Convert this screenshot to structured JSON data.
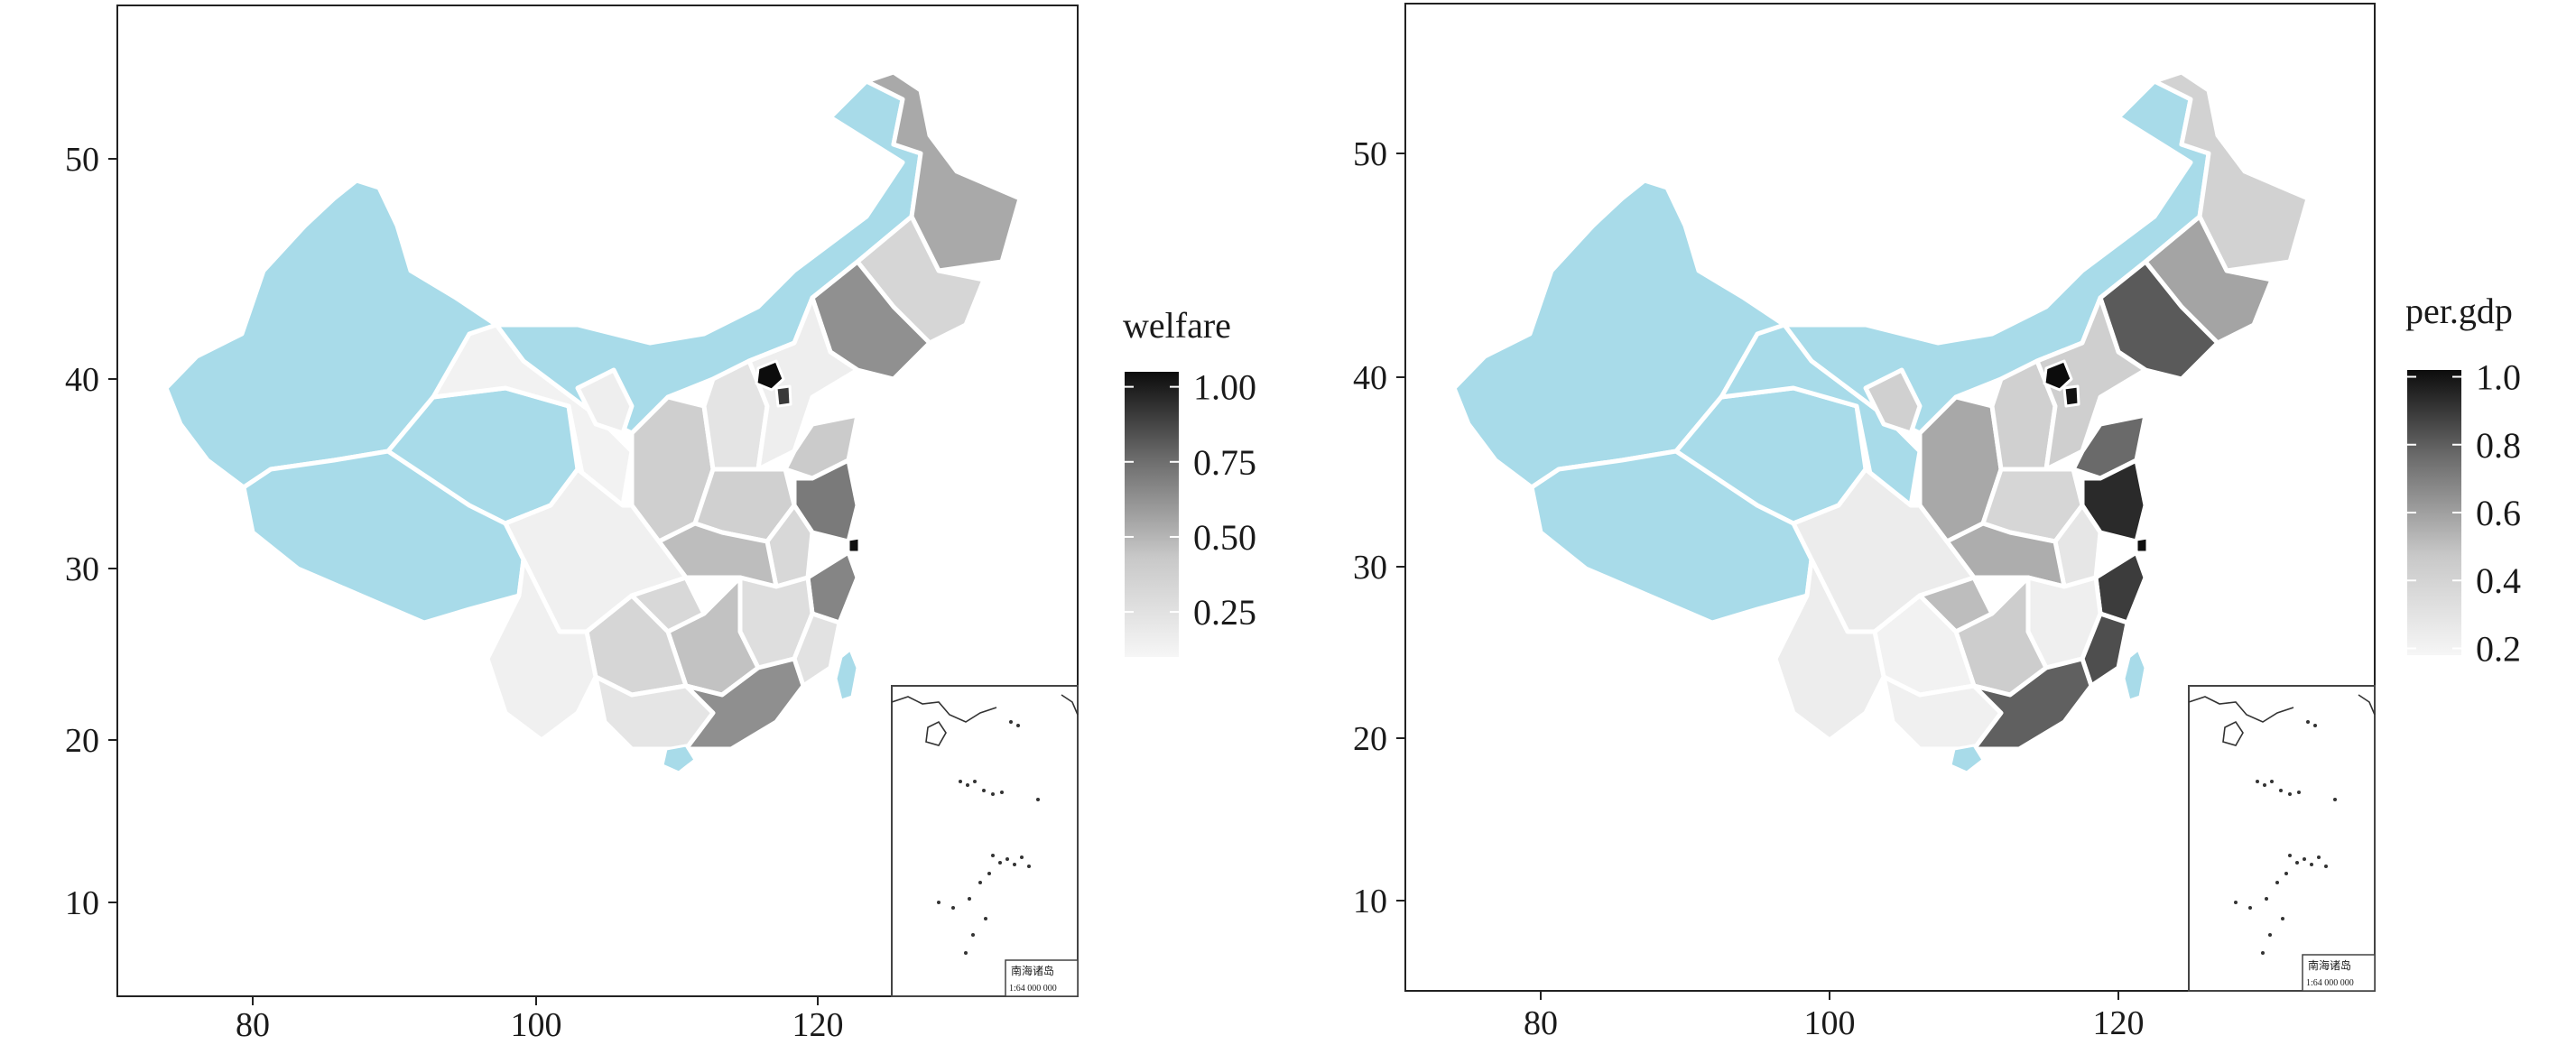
{
  "panels": [
    {
      "legend": {
        "title": "welfare",
        "ticks": [
          "1.00",
          "0.75",
          "0.50",
          "0.25"
        ],
        "range": [
          0.1,
          1.05
        ]
      },
      "axes": {
        "x_ticks": [
          "80",
          "100",
          "120"
        ],
        "y_ticks": [
          "50",
          "40",
          "30",
          "20",
          "10"
        ]
      },
      "inset": {
        "label": "南海诸岛",
        "scale": "1:64 000 000"
      }
    },
    {
      "legend": {
        "title": "per.gdp",
        "ticks": [
          "1.0",
          "0.8",
          "0.6",
          "0.4",
          "0.2"
        ],
        "range": [
          0.18,
          1.02
        ]
      },
      "axes": {
        "x_ticks": [
          "80",
          "100",
          "120"
        ],
        "y_ticks": [
          "50",
          "40",
          "30",
          "20",
          "10"
        ]
      },
      "inset": {
        "label": "南海诸岛",
        "scale": "1:64 000 000"
      }
    }
  ],
  "colors": {
    "no_data": "#a8dbe9",
    "gradient_low": "#f4f4f4",
    "gradient_high": "#0c0c0c",
    "border": "#ffffff"
  }
}
